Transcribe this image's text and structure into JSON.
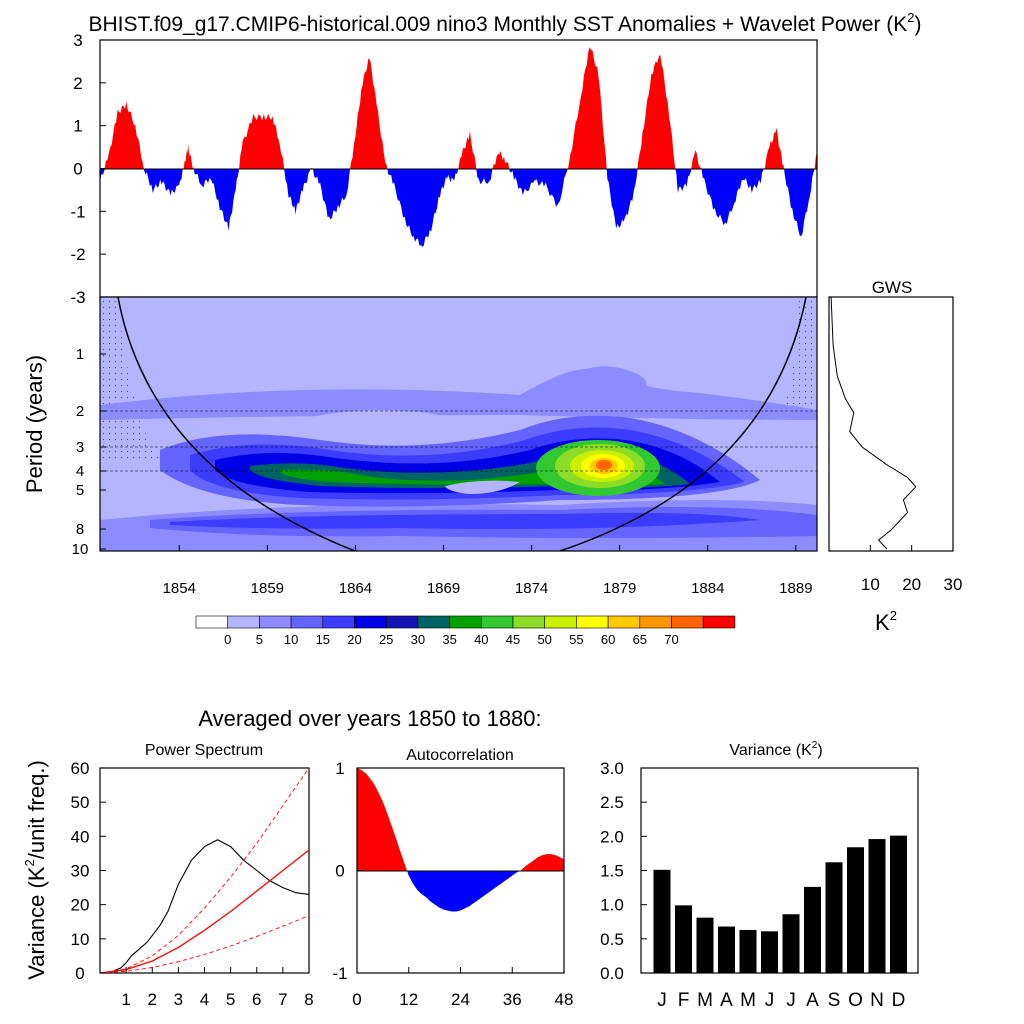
{
  "title_main": "BHIST.f09_g17.CMIP6-historical.009 nino3 Monthly SST Anomalies + Wavelet Power (K",
  "title_main_sup": "2",
  "title_main_tail": ")",
  "colors": {
    "positive": "#ff0000",
    "negative": "#0000ff",
    "axis": "#000000"
  },
  "chart_data": [
    {
      "type": "area",
      "id": "sst-anomaly",
      "ylim": [
        -3,
        3
      ],
      "xlim": [
        1849.5,
        1890.2
      ],
      "yticks": [
        "3",
        "2",
        "1",
        "0",
        "-1",
        "-2",
        "-3"
      ],
      "series": [
        {
          "points": [
            [
              1849.5,
              -0.3
            ],
            [
              1850,
              0.3
            ],
            [
              1850.5,
              1.3
            ],
            [
              1851,
              1.5
            ],
            [
              1851.5,
              1.0
            ],
            [
              1852,
              0.0
            ],
            [
              1852.5,
              -0.5
            ],
            [
              1853,
              -0.3
            ],
            [
              1853.5,
              -0.6
            ],
            [
              1854,
              -0.4
            ],
            [
              1854.3,
              0.1
            ],
            [
              1854.5,
              0.5
            ],
            [
              1854.8,
              0.0
            ],
            [
              1855.3,
              -0.4
            ],
            [
              1855.8,
              -0.2
            ],
            [
              1856.3,
              -0.9
            ],
            [
              1856.8,
              -1.4
            ],
            [
              1857.2,
              -0.5
            ],
            [
              1857.6,
              0.6
            ],
            [
              1858.2,
              1.2
            ],
            [
              1858.8,
              1.2
            ],
            [
              1859.3,
              1.2
            ],
            [
              1859.7,
              0.6
            ],
            [
              1860.2,
              -0.6
            ],
            [
              1860.6,
              -1.0
            ],
            [
              1861,
              -0.5
            ],
            [
              1861.5,
              0.0
            ],
            [
              1862,
              -0.4
            ],
            [
              1862.5,
              -1.2
            ],
            [
              1863,
              -0.9
            ],
            [
              1863.5,
              -0.6
            ],
            [
              1864,
              0.8
            ],
            [
              1864.4,
              2.0
            ],
            [
              1864.8,
              2.6
            ],
            [
              1865.2,
              1.5
            ],
            [
              1865.7,
              0.1
            ],
            [
              1866.2,
              -0.4
            ],
            [
              1866.8,
              -1.2
            ],
            [
              1867.3,
              -1.6
            ],
            [
              1867.8,
              -1.8
            ],
            [
              1868.3,
              -1.4
            ],
            [
              1868.8,
              -0.6
            ],
            [
              1869.2,
              -0.2
            ],
            [
              1869.6,
              -0.3
            ],
            [
              1870.1,
              0.4
            ],
            [
              1870.5,
              0.8
            ],
            [
              1871,
              -0.3
            ],
            [
              1871.6,
              -0.3
            ],
            [
              1872.1,
              0.4
            ],
            [
              1872.5,
              0.2
            ],
            [
              1873,
              -0.2
            ],
            [
              1873.5,
              -0.6
            ],
            [
              1874.2,
              -0.3
            ],
            [
              1874.8,
              -0.4
            ],
            [
              1875.5,
              -0.9
            ],
            [
              1876.2,
              0.3
            ],
            [
              1876.8,
              1.7
            ],
            [
              1877.3,
              2.9
            ],
            [
              1877.8,
              2.2
            ],
            [
              1878.3,
              -0.2
            ],
            [
              1878.8,
              -1.4
            ],
            [
              1879.3,
              -1.2
            ],
            [
              1879.8,
              -0.6
            ],
            [
              1880.3,
              0.8
            ],
            [
              1880.8,
              2.2
            ],
            [
              1881.3,
              2.7
            ],
            [
              1881.8,
              1.3
            ],
            [
              1882.3,
              -0.5
            ],
            [
              1882.8,
              -0.4
            ],
            [
              1883.3,
              0.4
            ],
            [
              1883.8,
              -0.3
            ],
            [
              1884.4,
              -1.0
            ],
            [
              1885,
              -1.3
            ],
            [
              1885.5,
              -0.8
            ],
            [
              1886,
              -0.2
            ],
            [
              1886.5,
              -0.5
            ],
            [
              1887,
              -0.3
            ],
            [
              1887.5,
              0.5
            ],
            [
              1887.9,
              0.9
            ],
            [
              1888.3,
              0.0
            ],
            [
              1888.8,
              -1.0
            ],
            [
              1889.3,
              -1.6
            ],
            [
              1889.8,
              -0.6
            ],
            [
              1890.2,
              0.4
            ]
          ]
        }
      ]
    },
    {
      "type": "heatmap",
      "id": "wavelet-power",
      "ylabel": "Period (years)",
      "yticks": [
        "1",
        "2",
        "3",
        "4",
        "5",
        "8",
        "10"
      ],
      "xticks": [
        "1854",
        "1859",
        "1864",
        "1869",
        "1874",
        "1879",
        "1884",
        "1889"
      ],
      "xlim": [
        1849.5,
        1890.2
      ],
      "ylim": [
        0.5,
        10
      ],
      "hot_spot": {
        "year": 1878,
        "period": 3.8,
        "power": 70
      }
    },
    {
      "type": "line",
      "id": "gws",
      "title": "GWS",
      "xlabel": "K",
      "xlabel_sup": "2",
      "xticks": [
        "10",
        "20",
        "30"
      ],
      "xlim": [
        0,
        30
      ],
      "series": [
        {
          "points": [
            [
              0.5,
              0.5
            ],
            [
              1,
              0.9
            ],
            [
              2,
              1.3
            ],
            [
              4,
              1.7
            ],
            [
              6,
              2.0
            ],
            [
              5,
              2.5
            ],
            [
              8,
              3.0
            ],
            [
              14,
              3.7
            ],
            [
              19,
              4.3
            ],
            [
              21,
              4.8
            ],
            [
              18,
              5.6
            ],
            [
              19,
              6.5
            ],
            [
              15,
              8.0
            ],
            [
              12,
              9.0
            ],
            [
              14,
              10.0
            ]
          ]
        }
      ]
    },
    {
      "type": "legend",
      "id": "colorbar",
      "labels": [
        "0",
        "5",
        "10",
        "15",
        "20",
        "25",
        "30",
        "35",
        "40",
        "45",
        "50",
        "55",
        "60",
        "65",
        "70"
      ],
      "colors": [
        "#ffffff",
        "#b4b4ff",
        "#8c8cff",
        "#6464ff",
        "#3c3cff",
        "#0000e6",
        "#1414b4",
        "#006464",
        "#00a000",
        "#32c832",
        "#8cdc28",
        "#c8f000",
        "#ffff00",
        "#ffc800",
        "#ff9600",
        "#ff6400",
        "#ff0000"
      ]
    },
    {
      "type": "line",
      "id": "power-spectrum",
      "title": "Power Spectrum",
      "ylabel": "Variance (K",
      "ylabel_sup": "2",
      "ylabel_tail": "/unit freq.)",
      "xlim": [
        0,
        8
      ],
      "ylim": [
        0,
        60
      ],
      "xticks": [
        "1",
        "2",
        "3",
        "4",
        "5",
        "6",
        "7",
        "8"
      ],
      "yticks": [
        "60",
        "50",
        "40",
        "30",
        "20",
        "10",
        "0"
      ],
      "series": [
        {
          "name": "",
          "points": [
            [
              0.1,
              0
            ],
            [
              0.5,
              0.5
            ],
            [
              0.8,
              1.5
            ],
            [
              1,
              3
            ],
            [
              1.2,
              5
            ],
            [
              1.5,
              7
            ],
            [
              1.8,
              9
            ],
            [
              2,
              11
            ],
            [
              2.3,
              14
            ],
            [
              2.6,
              18
            ],
            [
              3,
              26
            ],
            [
              3.5,
              33
            ],
            [
              4,
              37
            ],
            [
              4.5,
              39
            ],
            [
              5,
              37
            ],
            [
              5.5,
              33
            ],
            [
              6,
              30
            ],
            [
              6.5,
              27
            ],
            [
              7,
              25
            ],
            [
              7.5,
              23.5
            ],
            [
              8,
              23
            ]
          ]
        },
        {
          "name": "",
          "points": [
            [
              0,
              0
            ],
            [
              1,
              1
            ],
            [
              2,
              3.5
            ],
            [
              3,
              7.5
            ],
            [
              4,
              12.5
            ],
            [
              5,
              18
            ],
            [
              6,
              24
            ],
            [
              7,
              30
            ],
            [
              8,
              36
            ]
          ]
        },
        {
          "name": "",
          "points": [
            [
              0,
              0
            ],
            [
              1,
              1.2
            ],
            [
              2,
              5
            ],
            [
              3,
              11
            ],
            [
              4,
              19
            ],
            [
              5,
              28
            ],
            [
              6,
              38
            ],
            [
              7,
              49
            ],
            [
              8,
              61
            ]
          ]
        },
        {
          "name": "",
          "points": [
            [
              0,
              0
            ],
            [
              1,
              0.5
            ],
            [
              2,
              1.6
            ],
            [
              3,
              3.3
            ],
            [
              4,
              5.4
            ],
            [
              5,
              7.9
            ],
            [
              6,
              10.7
            ],
            [
              7,
              13.7
            ],
            [
              8,
              16.8
            ]
          ]
        }
      ]
    },
    {
      "type": "area",
      "id": "autocorrelation",
      "title": "Autocorrelation",
      "xlim": [
        0,
        48
      ],
      "ylim": [
        -1,
        1
      ],
      "xticks": [
        "0",
        "12",
        "24",
        "36",
        "48"
      ],
      "yticks": [
        "1",
        "0",
        "-1"
      ],
      "series": [
        {
          "points": [
            [
              0,
              1
            ],
            [
              1,
              0.98
            ],
            [
              2,
              0.95
            ],
            [
              3,
              0.9
            ],
            [
              4,
              0.84
            ],
            [
              5,
              0.76
            ],
            [
              6,
              0.67
            ],
            [
              7,
              0.56
            ],
            [
              8,
              0.44
            ],
            [
              9,
              0.32
            ],
            [
              10,
              0.19
            ],
            [
              11,
              0.07
            ],
            [
              12,
              -0.05
            ],
            [
              13,
              -0.13
            ],
            [
              14,
              -0.19
            ],
            [
              15,
              -0.23
            ],
            [
              16,
              -0.26
            ],
            [
              17,
              -0.3
            ],
            [
              18,
              -0.33
            ],
            [
              19,
              -0.36
            ],
            [
              20,
              -0.38
            ],
            [
              21,
              -0.39
            ],
            [
              22,
              -0.4
            ],
            [
              23,
              -0.4
            ],
            [
              24,
              -0.39
            ],
            [
              25,
              -0.37
            ],
            [
              26,
              -0.35
            ],
            [
              27,
              -0.32
            ],
            [
              28,
              -0.29
            ],
            [
              29,
              -0.26
            ],
            [
              30,
              -0.23
            ],
            [
              31,
              -0.2
            ],
            [
              32,
              -0.17
            ],
            [
              33,
              -0.14
            ],
            [
              34,
              -0.11
            ],
            [
              35,
              -0.08
            ],
            [
              36,
              -0.05
            ],
            [
              37,
              -0.02
            ],
            [
              38,
              0
            ],
            [
              39,
              0.04
            ],
            [
              40,
              0.07
            ],
            [
              41,
              0.1
            ],
            [
              42,
              0.13
            ],
            [
              43,
              0.15
            ],
            [
              44,
              0.16
            ],
            [
              45,
              0.16
            ],
            [
              46,
              0.15
            ],
            [
              47,
              0.13
            ],
            [
              48,
              0.11
            ]
          ]
        }
      ]
    },
    {
      "type": "bar",
      "id": "variance",
      "title": "Variance (K",
      "title_sup": "2",
      "title_tail": ")",
      "categories": [
        "J",
        "F",
        "M",
        "A",
        "M",
        "J",
        "J",
        "A",
        "S",
        "O",
        "N",
        "D"
      ],
      "values": [
        1.51,
        0.99,
        0.81,
        0.68,
        0.63,
        0.61,
        0.86,
        1.26,
        1.62,
        1.84,
        1.96,
        2.01
      ],
      "ylim": [
        0,
        3
      ],
      "yticks": [
        "3.0",
        "2.5",
        "2.0",
        "1.5",
        "1.0",
        "0.5",
        "0.0"
      ]
    }
  ],
  "averaged_title": "Averaged over years 1850 to 1880:"
}
